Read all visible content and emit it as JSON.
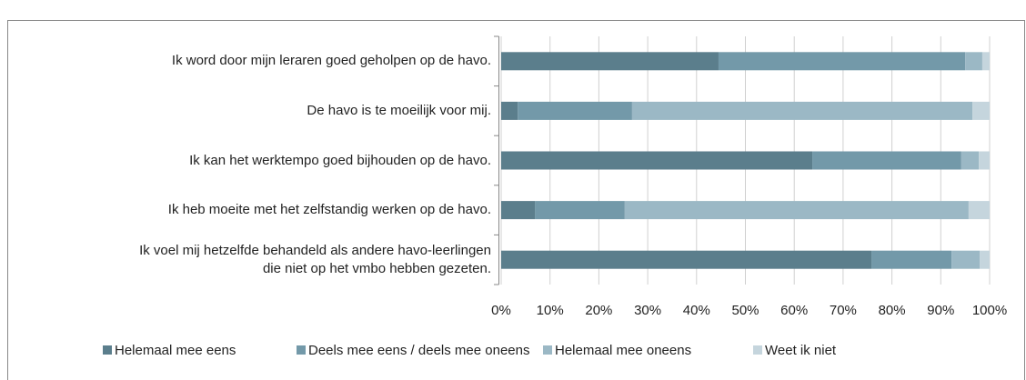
{
  "chart_data": {
    "type": "stacked_barh",
    "categories": [
      "Ik word door mijn leraren goed geholpen op de havo.",
      "De havo is te moeilijk voor mij.",
      "Ik kan het werktempo goed bijhouden op de havo.",
      "Ik heb moeite met het zelfstandig werken op de havo.",
      "Ik voel mij hetzelfde behandeld als andere havo-leerlingen\ndie niet op het vmbo hebben gezeten."
    ],
    "series": [
      {
        "name": "Helemaal mee eens",
        "color": "#5b7e8c",
        "values": [
          44.5,
          3.4,
          63.7,
          6.9,
          75.8
        ]
      },
      {
        "name": "Deels mee eens / deels mee oneens",
        "color": "#7399a9",
        "values": [
          50.5,
          23.4,
          30.5,
          18.4,
          16.4
        ]
      },
      {
        "name": "Helemaal mee oneens",
        "color": "#9bb8c5",
        "values": [
          3.5,
          69.7,
          3.6,
          70.4,
          5.8
        ]
      },
      {
        "name": "Weet ik niet",
        "color": "#c5d5dd",
        "values": [
          1.5,
          3.5,
          2.2,
          4.3,
          2.0
        ]
      }
    ],
    "xlim": [
      0,
      100
    ],
    "xticks": [
      {
        "value": 0,
        "label": "0%"
      },
      {
        "value": 10,
        "label": "10%"
      },
      {
        "value": 20,
        "label": "20%"
      },
      {
        "value": 30,
        "label": "30%"
      },
      {
        "value": 40,
        "label": "40%"
      },
      {
        "value": 50,
        "label": "50%"
      },
      {
        "value": 60,
        "label": "60%"
      },
      {
        "value": 70,
        "label": "70%"
      },
      {
        "value": 80,
        "label": "80%"
      },
      {
        "value": 90,
        "label": "90%"
      },
      {
        "value": 100,
        "label": "100%"
      }
    ],
    "grid": true,
    "legend": "bottom"
  }
}
